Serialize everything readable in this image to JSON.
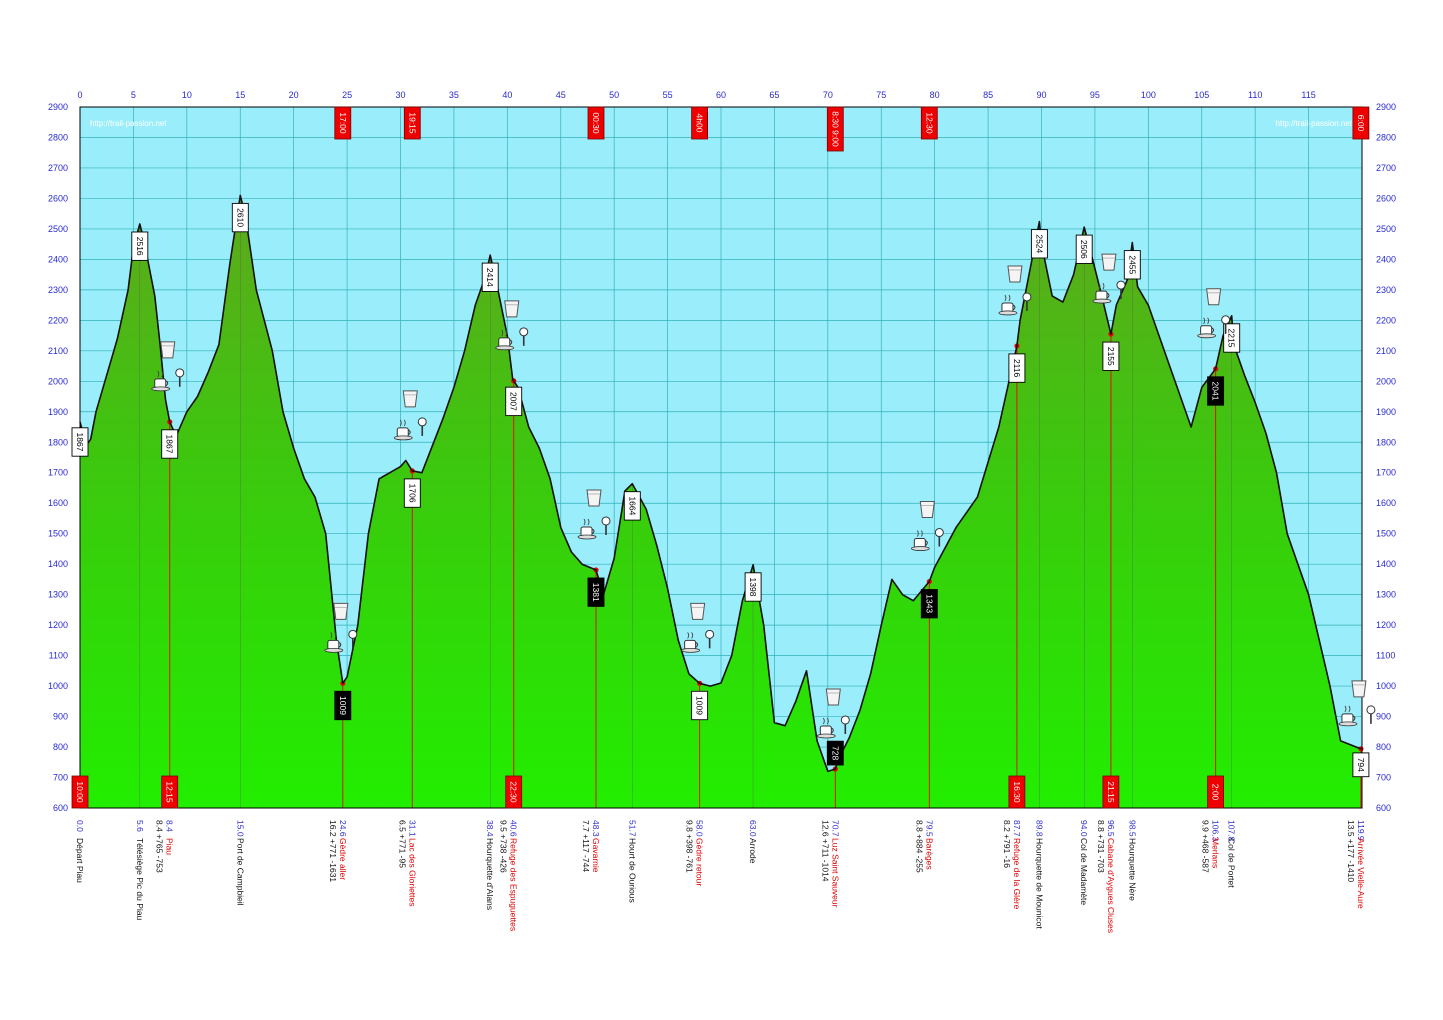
{
  "chart_data": {
    "type": "area",
    "watermark_left": "http://trail-passion.net",
    "watermark_right": "http://trail-passion.net",
    "xlim": [
      0,
      120
    ],
    "ylim": [
      600,
      2900
    ],
    "x_ticks": [
      0,
      5,
      10,
      15,
      20,
      25,
      30,
      35,
      40,
      45,
      50,
      55,
      60,
      65,
      70,
      75,
      80,
      85,
      90,
      95,
      100,
      105,
      110,
      115
    ],
    "y_ticks": [
      600,
      700,
      800,
      900,
      1000,
      1100,
      1200,
      1300,
      1400,
      1500,
      1600,
      1700,
      1800,
      1900,
      2000,
      2100,
      2200,
      2300,
      2400,
      2500,
      2600,
      2700,
      2800,
      2900
    ],
    "grid": true,
    "profile": [
      [
        0,
        1867
      ],
      [
        0.6,
        1790
      ],
      [
        1,
        1810
      ],
      [
        1.5,
        1900
      ],
      [
        2.5,
        2020
      ],
      [
        3.5,
        2140
      ],
      [
        4.5,
        2300
      ],
      [
        5,
        2440
      ],
      [
        5.6,
        2516
      ],
      [
        6,
        2460
      ],
      [
        7,
        2280
      ],
      [
        7.5,
        2120
      ],
      [
        8,
        1940
      ],
      [
        8.4,
        1867
      ],
      [
        9,
        1820
      ],
      [
        10,
        1900
      ],
      [
        11,
        1950
      ],
      [
        12,
        2030
      ],
      [
        13,
        2120
      ],
      [
        14,
        2380
      ],
      [
        15,
        2610
      ],
      [
        15.5,
        2540
      ],
      [
        16.5,
        2300
      ],
      [
        18,
        2100
      ],
      [
        19,
        1900
      ],
      [
        20,
        1780
      ],
      [
        21,
        1680
      ],
      [
        22,
        1620
      ],
      [
        23,
        1500
      ],
      [
        24,
        1150
      ],
      [
        24.6,
        1009
      ],
      [
        25,
        1030
      ],
      [
        26,
        1200
      ],
      [
        27,
        1500
      ],
      [
        28,
        1680
      ],
      [
        29,
        1700
      ],
      [
        30,
        1720
      ],
      [
        30.5,
        1740
      ],
      [
        31.1,
        1706
      ],
      [
        32,
        1700
      ],
      [
        34,
        1880
      ],
      [
        35,
        1980
      ],
      [
        36,
        2100
      ],
      [
        37,
        2250
      ],
      [
        38,
        2350
      ],
      [
        38.4,
        2414
      ],
      [
        39,
        2320
      ],
      [
        40,
        2150
      ],
      [
        40.5,
        2007
      ],
      [
        41,
        1980
      ],
      [
        42,
        1850
      ],
      [
        43,
        1780
      ],
      [
        44,
        1680
      ],
      [
        45,
        1520
      ],
      [
        46,
        1440
      ],
      [
        47,
        1400
      ],
      [
        48.3,
        1381
      ],
      [
        49,
        1300
      ],
      [
        50,
        1420
      ],
      [
        51,
        1640
      ],
      [
        51.7,
        1664
      ],
      [
        53,
        1580
      ],
      [
        54,
        1460
      ],
      [
        55,
        1320
      ],
      [
        56,
        1150
      ],
      [
        57,
        1040
      ],
      [
        58,
        1009
      ],
      [
        59,
        1000
      ],
      [
        60,
        1010
      ],
      [
        61,
        1100
      ],
      [
        62,
        1280
      ],
      [
        63,
        1398
      ],
      [
        64,
        1200
      ],
      [
        65,
        880
      ],
      [
        66,
        870
      ],
      [
        67,
        950
      ],
      [
        68,
        1050
      ],
      [
        69,
        820
      ],
      [
        70,
        720
      ],
      [
        70.7,
        728
      ],
      [
        71,
        760
      ],
      [
        72,
        830
      ],
      [
        73,
        920
      ],
      [
        74,
        1040
      ],
      [
        75,
        1200
      ],
      [
        76,
        1350
      ],
      [
        77,
        1300
      ],
      [
        78,
        1280
      ],
      [
        79.5,
        1343
      ],
      [
        80,
        1390
      ],
      [
        82,
        1520
      ],
      [
        84,
        1620
      ],
      [
        86,
        1850
      ],
      [
        87.7,
        2116
      ],
      [
        88,
        2200
      ],
      [
        89,
        2380
      ],
      [
        89.8,
        2524
      ],
      [
        90,
        2450
      ],
      [
        91,
        2280
      ],
      [
        92,
        2260
      ],
      [
        93,
        2350
      ],
      [
        94,
        2506
      ],
      [
        95,
        2370
      ],
      [
        95.5,
        2300
      ],
      [
        96.5,
        2155
      ],
      [
        97,
        2250
      ],
      [
        98,
        2330
      ],
      [
        98.5,
        2455
      ],
      [
        99,
        2310
      ],
      [
        100,
        2250
      ],
      [
        101,
        2150
      ],
      [
        102,
        2050
      ],
      [
        103,
        1950
      ],
      [
        104,
        1850
      ],
      [
        105,
        1980
      ],
      [
        106.3,
        2041
      ],
      [
        107,
        2150
      ],
      [
        107.8,
        2215
      ],
      [
        108,
        2120
      ],
      [
        109,
        2020
      ],
      [
        110,
        1930
      ],
      [
        111,
        1830
      ],
      [
        112,
        1700
      ],
      [
        113,
        1500
      ],
      [
        114,
        1400
      ],
      [
        115,
        1300
      ],
      [
        116,
        1150
      ],
      [
        117,
        1000
      ],
      [
        118,
        820
      ],
      [
        119.9,
        794
      ]
    ],
    "peak_labels": [
      {
        "x": 0.0,
        "y": 1867,
        "text": "1867",
        "dark": false
      },
      {
        "x": 5.6,
        "y": 2516,
        "text": "2516",
        "dark": false
      },
      {
        "x": 8.4,
        "y": 1867,
        "text": "1867",
        "dark": false
      },
      {
        "x": 15.0,
        "y": 2610,
        "text": "2610",
        "dark": false
      },
      {
        "x": 24.6,
        "y": 1009,
        "text": "1009",
        "dark": true
      },
      {
        "x": 31.1,
        "y": 1706,
        "text": "1706",
        "dark": false
      },
      {
        "x": 38.4,
        "y": 2414,
        "text": "2414",
        "dark": false
      },
      {
        "x": 40.6,
        "y": 2007,
        "text": "2007",
        "dark": false
      },
      {
        "x": 48.3,
        "y": 1381,
        "text": "1381",
        "dark": true
      },
      {
        "x": 51.7,
        "y": 1664,
        "text": "1664",
        "dark": false
      },
      {
        "x": 58.0,
        "y": 1009,
        "text": "1009",
        "dark": false
      },
      {
        "x": 63.0,
        "y": 1398,
        "text": "1398",
        "dark": false
      },
      {
        "x": 70.7,
        "y": 728,
        "text": "728",
        "dark": true
      },
      {
        "x": 79.5,
        "y": 1343,
        "text": "1343",
        "dark": true
      },
      {
        "x": 87.7,
        "y": 2116,
        "text": "2116",
        "dark": false
      },
      {
        "x": 89.8,
        "y": 2524,
        "text": "2524",
        "dark": false
      },
      {
        "x": 94.0,
        "y": 2506,
        "text": "2506",
        "dark": false
      },
      {
        "x": 96.5,
        "y": 2155,
        "text": "2155",
        "dark": false
      },
      {
        "x": 98.5,
        "y": 2455,
        "text": "2455",
        "dark": false
      },
      {
        "x": 106.3,
        "y": 2041,
        "text": "2041",
        "dark": true
      },
      {
        "x": 107.8,
        "y": 2215,
        "text": "2215",
        "dark": false
      },
      {
        "x": 119.9,
        "y": 794,
        "text": "794",
        "dark": false
      }
    ],
    "waypoints": [
      {
        "x": 0.0,
        "km": "0.0",
        "name": "Départ Piau",
        "ravito": false,
        "stats": ""
      },
      {
        "x": 5.6,
        "km": "5.6",
        "name": "Télésiège Pic du Piau",
        "ravito": false,
        "stats": ""
      },
      {
        "x": 8.4,
        "km": "8.4",
        "name": "Piau",
        "ravito": true,
        "stats": "8.4  +765  -753"
      },
      {
        "x": 15.0,
        "km": "15.0",
        "name": "Port de Campbieil",
        "ravito": false,
        "stats": ""
      },
      {
        "x": 24.6,
        "km": "24.6",
        "name": "Gèdre aller",
        "ravito": true,
        "stats": "16.2  +771  -1631"
      },
      {
        "x": 31.1,
        "km": "31.1",
        "name": "Lac des Gloriettes",
        "ravito": true,
        "stats": "6.5  +771  -95"
      },
      {
        "x": 38.4,
        "km": "38.4",
        "name": "Hourquette d'Alans",
        "ravito": false,
        "stats": ""
      },
      {
        "x": 40.6,
        "km": "40.6",
        "name": "Refuge des Espuguettes",
        "ravito": true,
        "stats": "9.5  +738  -426"
      },
      {
        "x": 48.3,
        "km": "48.3",
        "name": "Gavarnie",
        "ravito": true,
        "stats": "7.7  +117  -744"
      },
      {
        "x": 51.7,
        "km": "51.7",
        "name": "Hourt de Ourious",
        "ravito": false,
        "stats": ""
      },
      {
        "x": 58.0,
        "km": "58.0",
        "name": "Gèdre retour",
        "ravito": true,
        "stats": "9.8  +398  -761"
      },
      {
        "x": 63.0,
        "km": "63.0",
        "name": "Arrode",
        "ravito": false,
        "stats": ""
      },
      {
        "x": 70.7,
        "km": "70.7",
        "name": "Luz Saint Sauveur",
        "ravito": true,
        "stats": "12.6  +711  -1014"
      },
      {
        "x": 79.5,
        "km": "79.5",
        "name": "Barèges",
        "ravito": true,
        "stats": "8.8  +884  -255"
      },
      {
        "x": 87.7,
        "km": "87.7",
        "name": "Refuge de la Glère",
        "ravito": true,
        "stats": "8.2  +791  -16"
      },
      {
        "x": 89.8,
        "km": "89.8",
        "name": "Hourquette de Mounicot",
        "ravito": false,
        "stats": ""
      },
      {
        "x": 94.0,
        "km": "94.0",
        "name": "Col de Madamète",
        "ravito": false,
        "stats": ""
      },
      {
        "x": 96.5,
        "km": "96.5",
        "name": "Cabane d'Aygues Cluses",
        "ravito": true,
        "stats": "8.8  +731  -703"
      },
      {
        "x": 98.5,
        "km": "98.5",
        "name": "Hourquette Nère",
        "ravito": false,
        "stats": ""
      },
      {
        "x": 106.3,
        "km": "106.3",
        "name": "Merlans",
        "ravito": true,
        "stats": "9.9  +468  -587"
      },
      {
        "x": 107.8,
        "km": "107.8",
        "name": "Col de Portet",
        "ravito": false,
        "stats": ""
      },
      {
        "x": 119.9,
        "km": "119.9",
        "name": "Arrivée Vielle-Aure",
        "ravito": true,
        "stats": "13.5  +177  -1410"
      }
    ],
    "bottom_times": [
      {
        "x": 0.0,
        "text": "10:00"
      },
      {
        "x": 8.4,
        "text": "12:15"
      },
      {
        "x": 40.6,
        "text": "22:30"
      },
      {
        "x": 87.7,
        "text": "16:30"
      },
      {
        "x": 96.5,
        "text": "21:15"
      },
      {
        "x": 106.3,
        "text": "2:00"
      }
    ],
    "top_times": [
      {
        "x": 24.6,
        "text": "17:00",
        "tall": false
      },
      {
        "x": 31.1,
        "text": "19:15",
        "tall": false
      },
      {
        "x": 48.3,
        "text": "00:30",
        "tall": false
      },
      {
        "x": 58.0,
        "text": "4h00",
        "tall": false
      },
      {
        "x": 70.7,
        "text": "8:30 9:00",
        "tall": true
      },
      {
        "x": 79.5,
        "text": "12:30",
        "tall": false
      },
      {
        "x": 119.9,
        "text": "6:00",
        "tall": false
      }
    ],
    "colors": {
      "sky": "#9aeefb",
      "ground_top": "#5ea81c",
      "ground_bottom": "#22ee00",
      "ravito": "#ee0000",
      "axis_text": "#2a2ad0"
    }
  }
}
